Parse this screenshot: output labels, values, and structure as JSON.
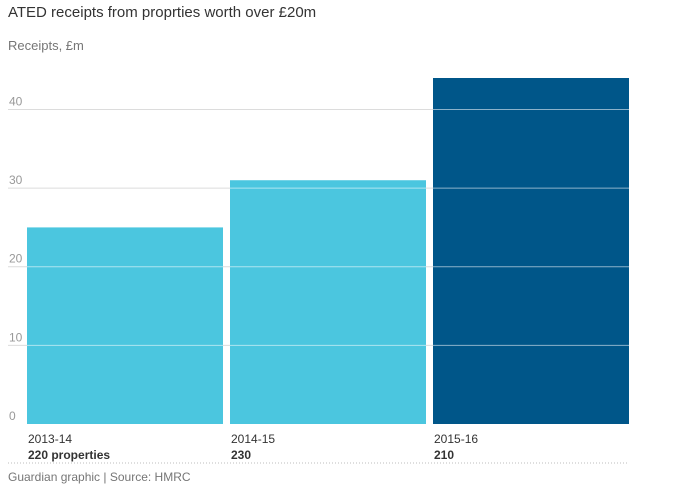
{
  "chart_data": {
    "type": "bar",
    "title": "ATED receipts from proprties worth over £20m",
    "unit_label": "Receipts, £m",
    "categories": [
      "2013-14",
      "2014-15",
      "2015-16"
    ],
    "sublabels": [
      "220 properties",
      "230",
      "210"
    ],
    "values": [
      25,
      31,
      44
    ],
    "colors": [
      "#4bc6df",
      "#4bc6df",
      "#005689"
    ],
    "yticks": [
      0,
      10,
      20,
      30,
      40
    ],
    "ylim": [
      0,
      44
    ],
    "grid": true,
    "grid_color": "#dcdcdc"
  },
  "footer": "Guardian graphic | Source: HMRC"
}
